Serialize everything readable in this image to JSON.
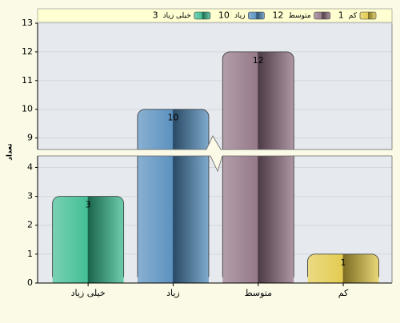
{
  "chart_data": {
    "type": "bar",
    "y_label": "تعداد",
    "categories": [
      "خیلی زیاد",
      "زیاد",
      "متوسط",
      "کم"
    ],
    "values": [
      3,
      10,
      12,
      1
    ],
    "colors": [
      "#2fb88a",
      "#4a86b8",
      "#8a6a7c",
      "#e0c640"
    ],
    "ylim": [
      0,
      13
    ],
    "axis_break": [
      4.4,
      8.6
    ],
    "yticks": [
      0,
      1,
      2,
      3,
      4,
      9,
      10,
      11,
      12,
      13
    ],
    "grid": true
  }
}
